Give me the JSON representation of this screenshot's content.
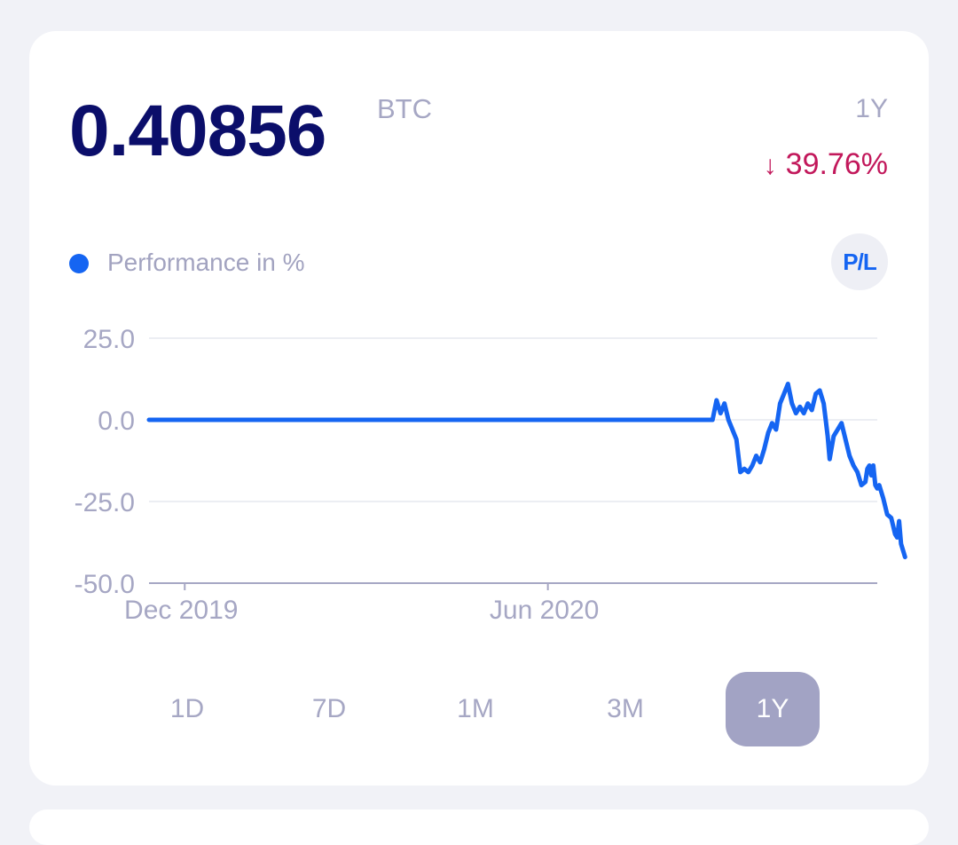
{
  "balance": {
    "amount": "0.40856",
    "unit": "BTC"
  },
  "period_label": "1Y",
  "change": {
    "arrow": "↓",
    "value": "39.76%",
    "color": "#c2185b"
  },
  "legend": {
    "label": "Performance in %",
    "color": "#1565f2"
  },
  "pl_button": {
    "label": "P/L"
  },
  "tabs": [
    {
      "label": "1D",
      "active": false
    },
    {
      "label": "7D",
      "active": false
    },
    {
      "label": "1M",
      "active": false
    },
    {
      "label": "3M",
      "active": false
    },
    {
      "label": "1Y",
      "active": true
    }
  ],
  "chart_data": {
    "type": "line",
    "ylim": [
      -50,
      25
    ],
    "y_ticks": [
      {
        "value": 25,
        "label": "25.0"
      },
      {
        "value": 0,
        "label": "0.0"
      },
      {
        "value": -25,
        "label": "-25.0"
      },
      {
        "value": -50,
        "label": "-50.0"
      }
    ],
    "x_ticks": [
      {
        "value": "2019-12-01",
        "label": "Dec 2019"
      },
      {
        "value": "2020-06-01",
        "label": "Jun 2020"
      }
    ],
    "xlim": [
      "2019-11-13",
      "2020-11-14"
    ],
    "grid": true,
    "series": [
      {
        "color": "#1565f2",
        "points": [
          [
            "2019-11-13",
            0
          ],
          [
            "2020-08-23",
            0
          ],
          [
            "2020-08-25",
            6
          ],
          [
            "2020-08-27",
            2
          ],
          [
            "2020-08-29",
            5
          ],
          [
            "2020-08-31",
            0
          ],
          [
            "2020-09-02",
            -3
          ],
          [
            "2020-09-04",
            -6
          ],
          [
            "2020-09-06",
            -16
          ],
          [
            "2020-09-08",
            -15
          ],
          [
            "2020-09-10",
            -16
          ],
          [
            "2020-09-12",
            -14
          ],
          [
            "2020-09-14",
            -11
          ],
          [
            "2020-09-16",
            -13
          ],
          [
            "2020-09-18",
            -9
          ],
          [
            "2020-09-20",
            -4
          ],
          [
            "2020-09-22",
            -1
          ],
          [
            "2020-09-24",
            -3
          ],
          [
            "2020-09-26",
            5
          ],
          [
            "2020-09-28",
            8
          ],
          [
            "2020-09-30",
            11
          ],
          [
            "2020-10-02",
            5
          ],
          [
            "2020-10-04",
            2
          ],
          [
            "2020-10-06",
            4
          ],
          [
            "2020-10-08",
            2
          ],
          [
            "2020-10-10",
            5
          ],
          [
            "2020-10-12",
            3
          ],
          [
            "2020-10-14",
            8
          ],
          [
            "2020-10-16",
            9
          ],
          [
            "2020-10-18",
            5
          ],
          [
            "2020-10-20",
            -5
          ],
          [
            "2020-10-21",
            -12
          ],
          [
            "2020-10-23",
            -5
          ],
          [
            "2020-10-25",
            -3
          ],
          [
            "2020-10-27",
            -1
          ],
          [
            "2020-10-29",
            -6
          ],
          [
            "2020-10-31",
            -11
          ],
          [
            "2020-11-02",
            -14
          ],
          [
            "2020-11-04",
            -16
          ],
          [
            "2020-11-06",
            -20
          ],
          [
            "2020-11-08",
            -19
          ],
          [
            "2020-11-09",
            -15
          ],
          [
            "2020-11-10",
            -14
          ],
          [
            "2020-11-11",
            -17
          ],
          [
            "2020-11-12",
            -14
          ],
          [
            "2020-11-13",
            -20
          ],
          [
            "2020-11-14",
            -21
          ],
          [
            "2020-11-15",
            -20
          ],
          [
            "2020-11-17",
            -24
          ],
          [
            "2020-11-19",
            -29
          ],
          [
            "2020-11-21",
            -30
          ],
          [
            "2020-11-23",
            -35
          ],
          [
            "2020-11-24",
            -36
          ],
          [
            "2020-11-25",
            -31
          ],
          [
            "2020-11-26",
            -38
          ],
          [
            "2020-11-27",
            -40
          ],
          [
            "2020-11-28",
            -42
          ]
        ]
      }
    ]
  }
}
